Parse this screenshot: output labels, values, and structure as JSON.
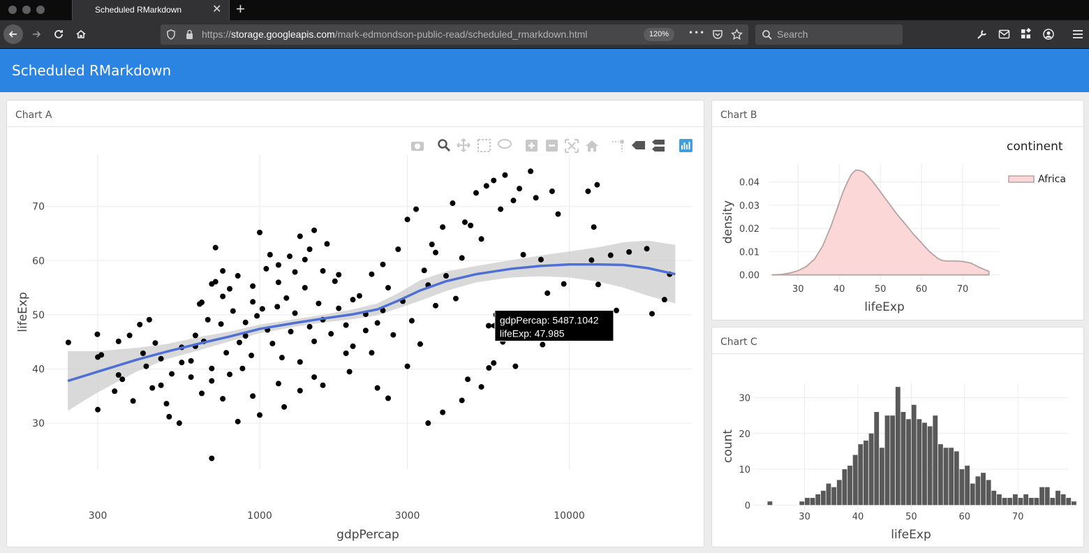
{
  "browser": {
    "tab_title": "Scheduled RMarkdown",
    "tab_close": "✕",
    "new_tab": "+",
    "url_scheme": "https://",
    "url_host": "storage.googleapis.com",
    "url_path": "/mark-edmondson-public-read/scheduled_rmarkdown.html",
    "zoom": "120%",
    "search_placeholder": "Search",
    "more": "•••"
  },
  "dashboard": {
    "title": "Scheduled RMarkdown",
    "cards": {
      "a": "Chart A",
      "b": "Chart B",
      "c": "Chart C"
    }
  },
  "chart_data": [
    {
      "id": "A",
      "type": "scatter",
      "xlabel": "gdpPercap",
      "ylabel": "lifeExp",
      "x_scale": "log",
      "x_ticks": [
        300,
        1000,
        3000,
        10000
      ],
      "y_ticks": [
        30,
        40,
        50,
        60,
        70
      ],
      "xlim": [
        200,
        25000
      ],
      "ylim": [
        21.5,
        79.5
      ],
      "grid": true,
      "legend": "none",
      "point_color": "#000000",
      "points": [
        [
          241,
          44.9
        ],
        [
          299,
          46.4
        ],
        [
          300,
          42.2
        ],
        [
          308,
          42.6
        ],
        [
          340,
          35.9
        ],
        [
          350,
          38.9
        ],
        [
          360,
          38.1
        ],
        [
          390,
          34.1
        ],
        [
          420,
          42.9
        ],
        [
          300,
          32.5
        ],
        [
          350,
          45.1
        ],
        [
          410,
          48.2
        ],
        [
          440,
          49.1
        ],
        [
          480,
          41.9
        ],
        [
          450,
          36.5
        ],
        [
          500,
          33.6
        ],
        [
          510,
          31.2
        ],
        [
          550,
          30.0
        ],
        [
          560,
          44.0
        ],
        [
          600,
          41.5
        ],
        [
          620,
          46.2
        ],
        [
          650,
          52.3
        ],
        [
          700,
          55.7
        ],
        [
          720,
          62.4
        ],
        [
          760,
          58.1
        ],
        [
          800,
          54.8
        ],
        [
          900,
          48.6
        ],
        [
          950,
          52.4
        ],
        [
          1000,
          65.2
        ],
        [
          1080,
          61.1
        ],
        [
          1150,
          59.2
        ],
        [
          1250,
          60.8
        ],
        [
          1350,
          64.5
        ],
        [
          1450,
          62.1
        ],
        [
          1500,
          65.6
        ],
        [
          1650,
          63.1
        ],
        [
          1800,
          57.4
        ],
        [
          2000,
          52.8
        ],
        [
          2200,
          50.1
        ],
        [
          2400,
          48.5
        ],
        [
          2600,
          55.0
        ],
        [
          2800,
          62.1
        ],
        [
          3000,
          67.6
        ],
        [
          3200,
          69.5
        ],
        [
          3600,
          63.0
        ],
        [
          3900,
          66.2
        ],
        [
          4200,
          70.6
        ],
        [
          4600,
          67.1
        ],
        [
          5000,
          72.5
        ],
        [
          5400,
          73.8
        ],
        [
          5700,
          74.8
        ],
        [
          6200,
          75.8
        ],
        [
          7500,
          76.5
        ],
        [
          6900,
          73.3
        ],
        [
          8800,
          72.8
        ],
        [
          7800,
          71.6
        ],
        [
          9200,
          68.6
        ],
        [
          11500,
          72.8
        ],
        [
          12300,
          74.0
        ],
        [
          12000,
          66.2
        ],
        [
          8100,
          60.2
        ],
        [
          7100,
          61.1
        ],
        [
          9600,
          55.7
        ],
        [
          8500,
          54.0
        ],
        [
          11800,
          60.1
        ],
        [
          13600,
          61.0
        ],
        [
          15600,
          61.6
        ],
        [
          17800,
          62.2
        ],
        [
          21100,
          57.5
        ],
        [
          20300,
          52.8
        ],
        [
          18500,
          50.2
        ],
        [
          14200,
          50.8
        ],
        [
          12400,
          55.6
        ],
        [
          8200,
          44.5
        ],
        [
          6700,
          40.5
        ],
        [
          5700,
          41.1
        ],
        [
          5200,
          36.7
        ],
        [
          4500,
          34.2
        ],
        [
          3900,
          32.0
        ],
        [
          3500,
          30.0
        ],
        [
          2600,
          34.6
        ],
        [
          1900,
          42.9
        ],
        [
          1500,
          38.5
        ],
        [
          1200,
          33.0
        ],
        [
          1000,
          31.5
        ],
        [
          850,
          30.3
        ],
        [
          700,
          23.5
        ],
        [
          650,
          35.5
        ],
        [
          600,
          38.5
        ],
        [
          620,
          44.2
        ],
        [
          660,
          45.1
        ],
        [
          700,
          40.1
        ],
        [
          750,
          48.3
        ],
        [
          780,
          43.0
        ],
        [
          820,
          50.7
        ],
        [
          860,
          44.9
        ],
        [
          900,
          46.1
        ],
        [
          940,
          42.5
        ],
        [
          980,
          49.8
        ],
        [
          1020,
          51.1
        ],
        [
          1060,
          47.2
        ],
        [
          1100,
          44.7
        ],
        [
          1140,
          51.5
        ],
        [
          1180,
          42.1
        ],
        [
          1220,
          53.1
        ],
        [
          1260,
          46.9
        ],
        [
          1300,
          50.3
        ],
        [
          1350,
          41.3
        ],
        [
          1400,
          55.0
        ],
        [
          1450,
          47.8
        ],
        [
          1500,
          45.1
        ],
        [
          1550,
          52.1
        ],
        [
          1600,
          49.1
        ],
        [
          1700,
          46.5
        ],
        [
          1800,
          51.2
        ],
        [
          1900,
          48.1
        ],
        [
          2000,
          44.2
        ],
        [
          2100,
          53.5
        ],
        [
          2200,
          47.1
        ],
        [
          2300,
          43.0
        ],
        [
          2500,
          50.8
        ],
        [
          2700,
          46.3
        ],
        [
          2900,
          52.5
        ],
        [
          3100,
          48.9
        ],
        [
          3300,
          44.6
        ],
        [
          3500,
          55.5
        ],
        [
          3700,
          51.7
        ],
        [
          4000,
          57.2
        ],
        [
          4300,
          53.0
        ],
        [
          5487,
          47.985
        ],
        [
          5800,
          50.0
        ],
        [
          6100,
          45.0
        ],
        [
          4700,
          38.1
        ],
        [
          5500,
          40.2
        ],
        [
          3000,
          40.5
        ],
        [
          2400,
          36.5
        ],
        [
          1950,
          39.5
        ],
        [
          1600,
          37.0
        ],
        [
          1350,
          36.0
        ],
        [
          1150,
          37.3
        ],
        [
          950,
          35.0
        ],
        [
          880,
          40.1
        ],
        [
          800,
          39.0
        ],
        [
          760,
          34.5
        ],
        [
          700,
          37.8
        ],
        [
          560,
          41.2
        ],
        [
          520,
          39.1
        ],
        [
          480,
          37.0
        ],
        [
          460,
          44.8
        ],
        [
          430,
          40.5
        ],
        [
          380,
          46.2
        ],
        [
          640,
          52.0
        ],
        [
          680,
          49.1
        ],
        [
          720,
          56.1
        ],
        [
          760,
          53.4
        ],
        [
          850,
          57.2
        ],
        [
          950,
          55.3
        ],
        [
          1050,
          58.5
        ],
        [
          1150,
          56.0
        ],
        [
          1300,
          57.9
        ],
        [
          1400,
          60.2
        ],
        [
          1600,
          58.1
        ],
        [
          1750,
          56.2
        ],
        [
          2300,
          57.5
        ],
        [
          2500,
          59.3
        ],
        [
          3400,
          58.2
        ],
        [
          3700,
          61.5
        ],
        [
          4500,
          60.5
        ],
        [
          5200,
          64.0
        ],
        [
          6000,
          69.5
        ],
        [
          6600,
          71.1
        ],
        [
          4800,
          66.5
        ]
      ],
      "smooth_x": [
        240,
        300,
        400,
        500,
        650,
        800,
        1000,
        1300,
        1600,
        2000,
        2400,
        2800,
        3300,
        4000,
        5000,
        6500,
        8000,
        10000,
        12500,
        15000,
        18000,
        22000
      ],
      "smooth_y": [
        37.8,
        39.5,
        41.7,
        43.2,
        44.8,
        46.0,
        47.4,
        48.5,
        49.3,
        50.1,
        51.0,
        52.6,
        54.5,
        56.2,
        57.5,
        58.5,
        59.0,
        59.3,
        59.3,
        59.2,
        58.6,
        57.5
      ],
      "band_lower": [
        32.3,
        35.7,
        39.5,
        41.8,
        43.6,
        45.1,
        46.6,
        47.8,
        48.6,
        49.2,
        49.9,
        51.2,
        52.6,
        54.4,
        56.0,
        56.9,
        57.1,
        56.9,
        56.1,
        55.0,
        53.5,
        52.1
      ],
      "band_upper": [
        43.3,
        43.3,
        43.9,
        44.6,
        46.0,
        46.9,
        48.2,
        49.2,
        50.0,
        51.0,
        52.1,
        54.0,
        56.4,
        58.0,
        59.0,
        60.1,
        60.9,
        61.7,
        62.5,
        63.4,
        63.7,
        62.9
      ],
      "smooth_color": "#4e6fd3",
      "band_color": "#cccccc",
      "tooltip": {
        "x": 5487.1042,
        "y": 47.985,
        "line1": "gdpPercap:  5487.1042",
        "line2": "lifeExp: 47.985"
      }
    },
    {
      "id": "B",
      "type": "area",
      "xlabel": "lifeExp",
      "ylabel": "density",
      "x_ticks": [
        30,
        40,
        50,
        60,
        70
      ],
      "y_ticks": [
        0,
        0.01,
        0.02,
        0.03,
        0.04
      ],
      "y_tick_labels": [
        "0.00",
        "0.01",
        "0.02",
        "0.03",
        "0.04"
      ],
      "xlim": [
        23,
        79
      ],
      "ylim": [
        -0.0025,
        0.048
      ],
      "grid": true,
      "legend_title": "continent",
      "legend_placement": "right",
      "series": [
        {
          "name": "Africa",
          "fill": "#fbd7d7",
          "stroke": "#b3a3a3",
          "x": [
            23.6,
            26,
            28,
            30,
            32,
            34,
            36,
            38,
            40,
            41,
            42,
            43,
            44,
            45,
            46,
            47,
            48,
            49,
            50,
            52,
            54,
            56,
            58,
            60,
            62,
            64,
            65,
            66,
            68,
            70,
            72,
            74,
            76.4
          ],
          "y": [
            0.0,
            0.0002,
            0.0008,
            0.0018,
            0.0036,
            0.0068,
            0.0125,
            0.021,
            0.031,
            0.036,
            0.04,
            0.0434,
            0.0451,
            0.045,
            0.0442,
            0.0425,
            0.0405,
            0.0382,
            0.0358,
            0.031,
            0.0262,
            0.022,
            0.0176,
            0.0138,
            0.0099,
            0.0071,
            0.0062,
            0.006,
            0.006,
            0.0058,
            0.0051,
            0.0033,
            0.0015
          ]
        }
      ]
    },
    {
      "id": "C",
      "type": "bar",
      "xlabel": "lifeExp",
      "ylabel": "count",
      "x_ticks": [
        30,
        40,
        50,
        60,
        70
      ],
      "y_ticks": [
        0,
        10,
        20,
        30
      ],
      "xlim": [
        20.5,
        79.4
      ],
      "ylim": [
        -1.5,
        34
      ],
      "grid": true,
      "bar_color": "#595959",
      "bin_start": 23.0,
      "bin_width": 1.0,
      "values": [
        1,
        0,
        0,
        0,
        0,
        0,
        1,
        2,
        2,
        3,
        4,
        6,
        5,
        7,
        10,
        11,
        14,
        17,
        18,
        20,
        26,
        16,
        25,
        25,
        33,
        26,
        24,
        28,
        24,
        23,
        22,
        25,
        17,
        16,
        16,
        15,
        10,
        11,
        6,
        8,
        9,
        7,
        4,
        3,
        2,
        2,
        3,
        2,
        3,
        2,
        2,
        5,
        5,
        2,
        4,
        3,
        2,
        1
      ]
    }
  ]
}
